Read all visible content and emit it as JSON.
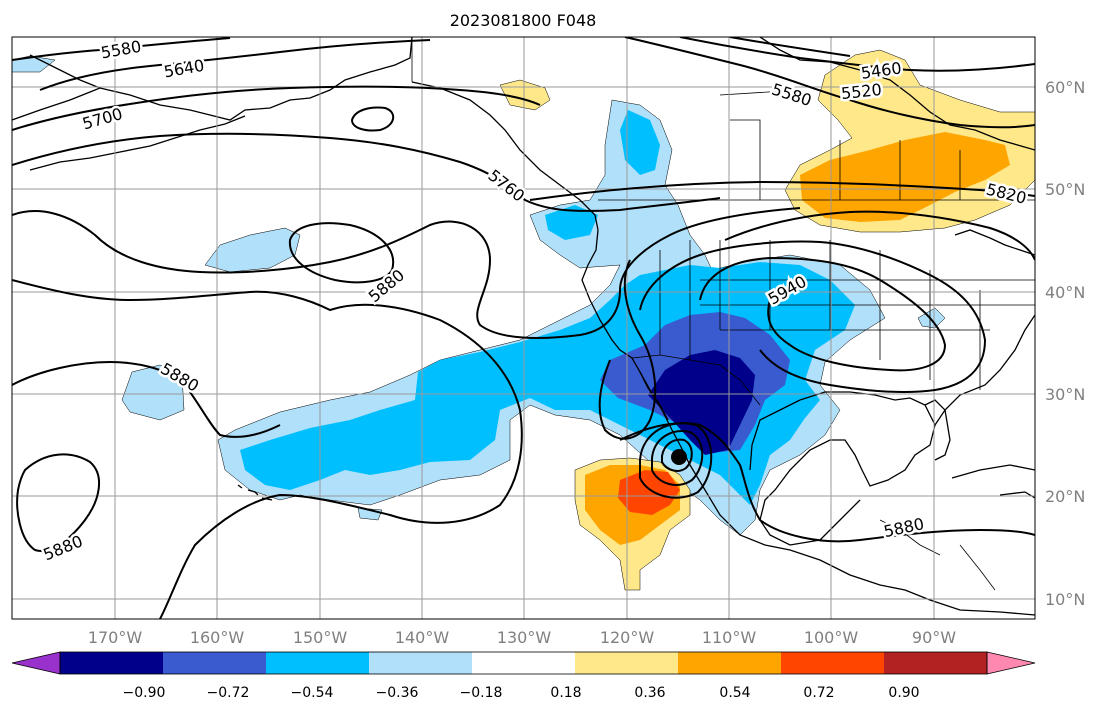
{
  "title": "2023081800 F048",
  "map": {
    "lon_labels": [
      "170°W",
      "160°W",
      "150°W",
      "140°W",
      "130°W",
      "120°W",
      "110°W",
      "100°W",
      "90°W"
    ],
    "lat_labels": [
      "60°N",
      "50°N",
      "40°N",
      "30°N",
      "20°N",
      "10°N"
    ],
    "contour_labels": [
      "5580",
      "5640",
      "5700",
      "5760",
      "5880",
      "5880",
      "5880",
      "5940",
      "5880",
      "5460",
      "5520",
      "5580",
      "5820"
    ]
  },
  "colorbar": {
    "ticks": [
      "−0.90",
      "−0.72",
      "−0.54",
      "−0.36",
      "−0.18",
      "0.18",
      "0.36",
      "0.54",
      "0.72",
      "0.90"
    ],
    "colors": [
      "#9932cc",
      "#00008b",
      "#3a5bcf",
      "#00bfff",
      "#b0e0fa",
      "#ffffff",
      "#ffe88a",
      "#ffa500",
      "#ff4500",
      "#b22222",
      "#ff88b0"
    ]
  }
}
